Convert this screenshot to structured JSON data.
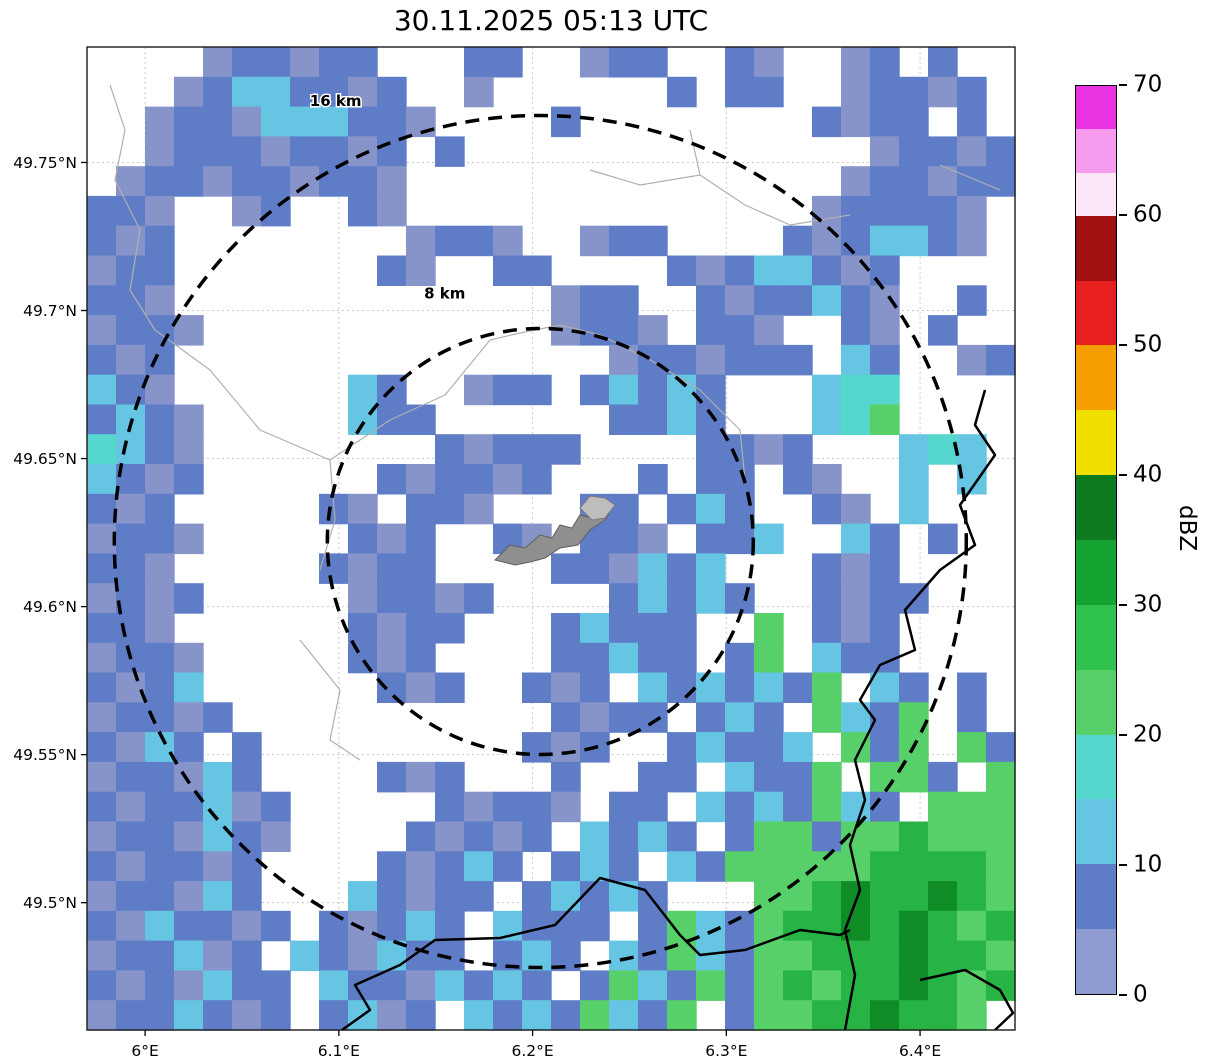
{
  "title": "30.11.2025 05:13 UTC",
  "chart_data": {
    "type": "heatmap",
    "title": "30.11.2025 05:13 UTC",
    "x_axis": {
      "range": [
        5.97,
        6.449
      ],
      "ticks": [
        {
          "value": 6.0,
          "label": "6°E"
        },
        {
          "value": 6.1,
          "label": "6.1°E"
        },
        {
          "value": 6.2,
          "label": "6.2°E"
        },
        {
          "value": 6.3,
          "label": "6.3°E"
        },
        {
          "value": 6.4,
          "label": "6.4°E"
        }
      ]
    },
    "y_axis": {
      "range": [
        49.457,
        49.789
      ],
      "ticks": [
        {
          "value": 49.75,
          "label": "49.75°N"
        },
        {
          "value": 49.7,
          "label": "49.7°N"
        },
        {
          "value": 49.65,
          "label": "49.65°N"
        },
        {
          "value": 49.6,
          "label": "49.6°N"
        },
        {
          "value": 49.55,
          "label": "49.55°N"
        },
        {
          "value": 49.5,
          "label": "49.5°N"
        }
      ]
    },
    "range_rings": {
      "center": {
        "lon": 6.204,
        "lat": 49.622
      },
      "rings": [
        {
          "km": 8,
          "label": "8 km",
          "label_pos": {
            "lon": 6.144,
            "lat": 49.704
          }
        },
        {
          "km": 16,
          "label": "16 km",
          "label_pos": {
            "lon": 6.085,
            "lat": 49.769
          }
        }
      ]
    },
    "colorbar": {
      "label": "dBZ",
      "min": 0,
      "max": 70,
      "tick_values": [
        0,
        10,
        20,
        30,
        40,
        50,
        60,
        70
      ],
      "segments": [
        {
          "from": 0,
          "to": 5,
          "color": "#8e9bd0"
        },
        {
          "from": 5,
          "to": 10,
          "color": "#5f7dc7"
        },
        {
          "from": 10,
          "to": 15,
          "color": "#66c5e2"
        },
        {
          "from": 15,
          "to": 20,
          "color": "#55d7cd"
        },
        {
          "from": 20,
          "to": 25,
          "color": "#57d06a"
        },
        {
          "from": 25,
          "to": 30,
          "color": "#2fc24d"
        },
        {
          "from": 30,
          "to": 35,
          "color": "#14a231"
        },
        {
          "from": 35,
          "to": 40,
          "color": "#0c7a1e"
        },
        {
          "from": 40,
          "to": 45,
          "color": "#f1df00"
        },
        {
          "from": 45,
          "to": 50,
          "color": "#f59e00"
        },
        {
          "from": 50,
          "to": 55,
          "color": "#e81f1f"
        },
        {
          "from": 55,
          "to": 60,
          "color": "#a01010"
        },
        {
          "from": 60,
          "to": 63.3,
          "color": "#fbe6f8"
        },
        {
          "from": 63.3,
          "to": 66.7,
          "color": "#f79bef"
        },
        {
          "from": 66.7,
          "to": 70,
          "color": "#ea33e0"
        }
      ]
    },
    "grid": {
      "cols": 32,
      "rows": 33,
      "legend": {
        "a": {
          "dbz": "0-5",
          "color": "#8794ca"
        },
        "b": {
          "dbz": "5-10",
          "color": "#5f7dc7"
        },
        "c": {
          "dbz": "10-15",
          "color": "#66c5e2"
        },
        "d": {
          "dbz": "15-20",
          "color": "#55d7cd"
        },
        "e": {
          "dbz": "20-25",
          "color": "#57d06a"
        },
        "f": {
          "dbz": "25-30",
          "color": "#28b445"
        },
        "g": {
          "dbz": "30-35",
          "color": "#108c27"
        }
      },
      "rows_data": [
        "....abbabb...bb..abb..ba..ab.b..",
        "...abccbbab..a......b.bb..abbab.",
        "..abbacccbba....b........babb.b.",
        "..abbbabbab.b..............abbab",
        ".abbabbabba...............abbabb",
        "bba..ab..ba..............abbbba.",
        "bab........abba..abb....babccba.",
        "abb.......ba..bb....babccbab.",
        "bba.............abb..babbcba..b",
        "abba............abba.bba..ba.b.",
        "bab...............abbabbb.cb..ab",
        "cba......cb..abb.bcbcb...cdd",
        "bcba.....cbb......bbcb...cde",
        "dcba........babbb....bbab...cdc.",
        "cbab......babbab...b.bb.ba..c.c",
        "bab.....ba.bba...bb.bcb..ba.c",
        "abba.....bab..ba.bba.bbc..cb.b",
        "bba.....babb....bbacbc...bab",
        "abab.....abbab....bcbcb..babb",
        "bba......babb...bcbbb..e.bab",
        "abba.....bab....bbcbb.be.cbb.",
        "babc......bab..bab.cbcbcbe.cb.b",
        "abbab...........babb.bcb.ecbe.b.",
        "bacb.b.........bab..bcbbc.ebe.eb",
        "abbacb....bab...b..bb.cbbe.eeb.e",
        "babbcab.....babba.bb.cbcbecb.eee",
        "abbacba....babab.cbcb.beebeefeee",
        "babbab....babcb.bcb.cbeeeeeffffe",
        "abbacb...cbabb.bcbcb...eefgffgfe",
        "bacbbab.babcb.cbbb.becbeffgfgfef",
        "abbcab.cbacbb.bcb.cbecbeefffgffe",
        "babacbb.cbbacbcb.becbebefeffgfef",
        "abbcbab.bcab.cbcbecbe.beeffgffe."
      ]
    }
  }
}
